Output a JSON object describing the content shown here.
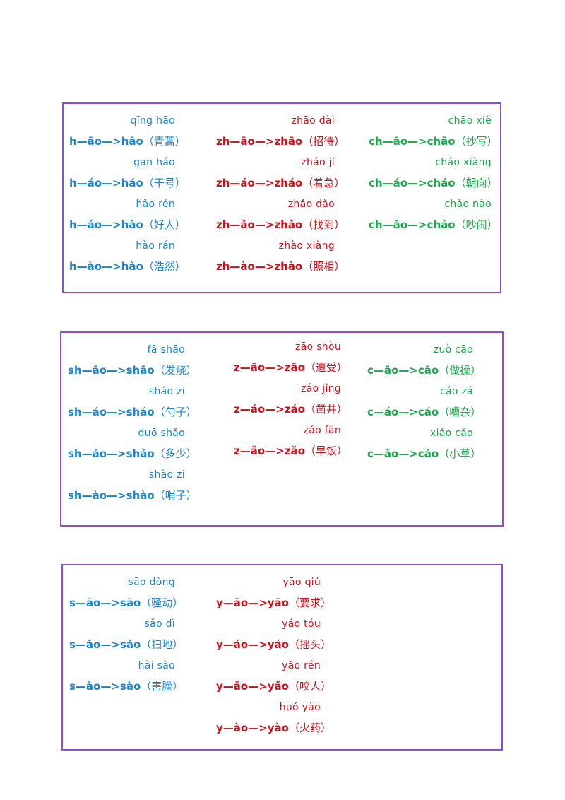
{
  "boxes": [
    {
      "columns": [
        {
          "color": "blue",
          "entries": [
            {
              "pinyin": "qīng  hāo",
              "formula": "h—āo—>hāo",
              "words": "（青蒿）"
            },
            {
              "pinyin": "gān háo",
              "formula": "h—áo—>háo",
              "words": "（干号）"
            },
            {
              "pinyin": "hǎo rén",
              "formula": "h—ǎo—>hǎo",
              "words": "（好人）"
            },
            {
              "pinyin": "hào rán",
              "formula": "h—ào—>hào",
              "words": "（浩然）"
            }
          ]
        },
        {
          "color": "red",
          "entries": [
            {
              "pinyin": "zhāo dài",
              "formula": "zh—āo—>zhāo",
              "words": "（招待）"
            },
            {
              "pinyin": "zháo jí",
              "formula": "zh—áo—>zháo",
              "words": "（着急）"
            },
            {
              "pinyin": "zhǎo dào",
              "formula": "zh—ǎo—>zhǎo",
              "words": "（找到）"
            },
            {
              "pinyin": "zhào xiàng",
              "formula": "zh—ào—>zhào",
              "words": "（照相）"
            }
          ]
        },
        {
          "color": "green",
          "entries": [
            {
              "pinyin": "chāo xiě",
              "formula": "ch—āo—>chāo",
              "words": "（抄写）"
            },
            {
              "pinyin": "cháo xiàng",
              "formula": "ch—áo—>cháo",
              "words": "（朝向）"
            },
            {
              "pinyin": "chǎo nào",
              "formula": "ch—ǎo—>chǎo",
              "words": "（吵闹）"
            }
          ]
        }
      ]
    },
    {
      "columns": [
        {
          "color": "blue",
          "entries": [
            {
              "pinyin": "fā shāo",
              "formula": "sh—āo—>shāo",
              "words": "（发烧）"
            },
            {
              "pinyin": "sháo zi",
              "formula": "sh—áo—>sháo",
              "words": "（勺子）"
            },
            {
              "pinyin": "duō shǎo",
              "formula": "sh—ǎo—>shǎo",
              "words": "（多少）"
            },
            {
              "pinyin": "shào zi",
              "formula": "sh—ào—>shào",
              "words": "（哨子）"
            }
          ]
        },
        {
          "color": "red",
          "entries": [
            {
              "pinyin": "zāo shòu",
              "formula": "z—āo—>zāo",
              "words": "（遭受）"
            },
            {
              "pinyin": "záo jǐng",
              "formula": "z—áo—>záo",
              "words": "（凿井）"
            },
            {
              "pinyin": "zǎo fàn",
              "formula": "z—ǎo—>zǎo",
              "words": "（早饭）"
            }
          ]
        },
        {
          "color": "green",
          "entries": [
            {
              "pinyin": "zuò cāo",
              "formula": "c—āo—>cāo",
              "words": "（做操）"
            },
            {
              "pinyin": "cáo zá",
              "formula": "c—áo—>cáo",
              "words": "（嘈杂）"
            },
            {
              "pinyin": "xiǎo cǎo",
              "formula": "c—ǎo—>cǎo",
              "words": "（小草）"
            }
          ]
        }
      ]
    },
    {
      "columns": [
        {
          "color": "blue",
          "entries": [
            {
              "pinyin": "sāo dòng",
              "formula": "s—āo—>sāo",
              "words": "（骚动）"
            },
            {
              "pinyin": "sǎo dì",
              "formula": "s—ǎo—>sǎo",
              "words": "（扫地）"
            },
            {
              "pinyin": "hài sào",
              "formula": "s—ào—>sào",
              "words": "（害臊）"
            }
          ]
        },
        {
          "color": "red",
          "entries": [
            {
              "pinyin": "yāo qiú",
              "formula": "y—āo—>yāo",
              "words": "（要求）"
            },
            {
              "pinyin": "yáo tóu",
              "formula": "y—áo—>yáo",
              "words": "（摇头）"
            },
            {
              "pinyin": "yǎo rén",
              "formula": "y—ǎo—>yǎo",
              "words": "（咬人）"
            },
            {
              "pinyin": "huǒ yào",
              "formula": "y—ào—>yào",
              "words": "（火药）"
            }
          ]
        }
      ]
    }
  ]
}
